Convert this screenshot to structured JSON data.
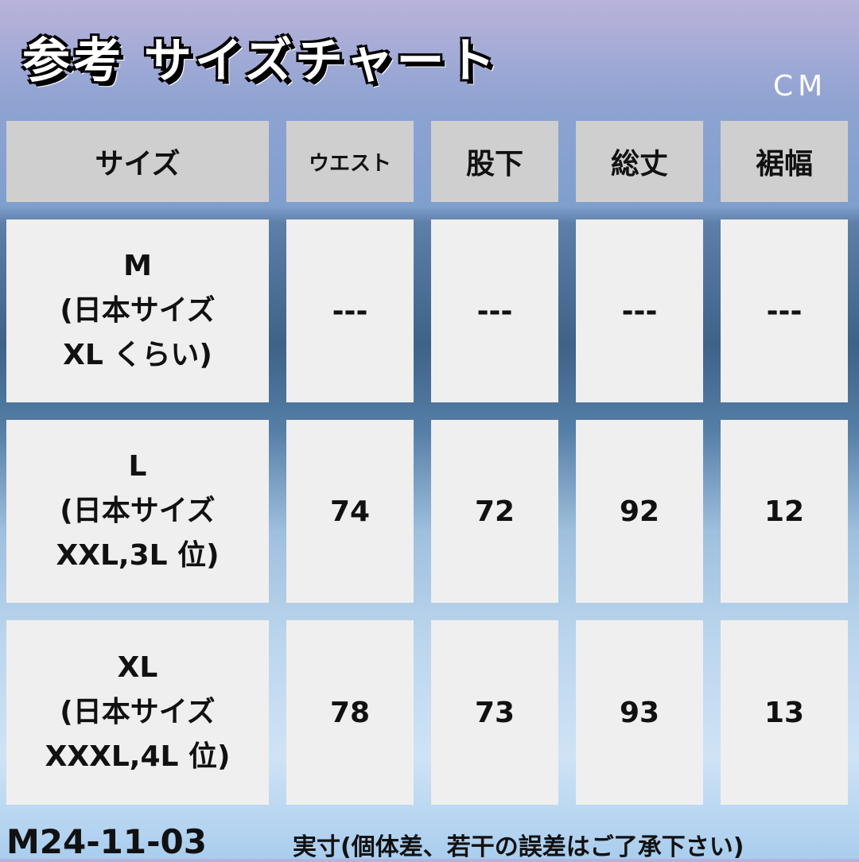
{
  "title": "参考 サイズチャート",
  "unit": "CM",
  "headers": [
    "サイズ",
    "ウエスト",
    "股下",
    "総丈",
    "裾幅"
  ],
  "rows": [
    {
      "size": "M",
      "jp1": "(日本サイズ",
      "jp2": "XL くらい)",
      "values": [
        "---",
        "---",
        "---",
        "---"
      ]
    },
    {
      "size": "L",
      "jp1": "(日本サイズ",
      "jp2": "XXL,3L 位)",
      "values": [
        "74",
        "72",
        "92",
        "12"
      ]
    },
    {
      "size": "XL",
      "jp1": "(日本サイズ",
      "jp2": "XXXL,4L 位)",
      "values": [
        "78",
        "73",
        "93",
        "13"
      ]
    }
  ],
  "footer": {
    "code": "M24-11-03",
    "note": "実寸(個体差、若干の誤差はご了承下さい)"
  },
  "colors": {
    "header_cell": "#cfcfcf",
    "body_cell": "#efefef",
    "text": "#111111"
  }
}
